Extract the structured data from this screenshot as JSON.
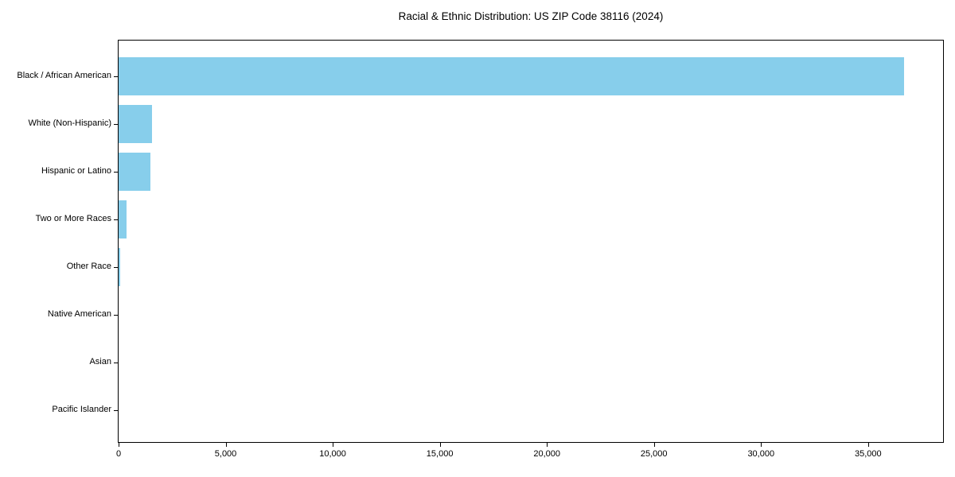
{
  "chart_data": {
    "type": "bar",
    "orientation": "horizontal",
    "title": "Racial & Ethnic Distribution: US ZIP Code 38116 (2024)",
    "categories": [
      "Black / African American",
      "White (Non-Hispanic)",
      "Hispanic or Latino",
      "Two or More Races",
      "Other Race",
      "Native American",
      "Asian",
      "Pacific Islander"
    ],
    "values": [
      36670,
      1560,
      1480,
      370,
      60,
      0,
      0,
      0
    ],
    "xlabel": "",
    "ylabel": "",
    "xlim": [
      0,
      38500
    ],
    "xticks": [
      0,
      5000,
      10000,
      15000,
      20000,
      25000,
      30000,
      35000
    ],
    "xtick_labels": [
      "0",
      "5,000",
      "10,000",
      "15,000",
      "20,000",
      "25,000",
      "30,000",
      "35,000"
    ],
    "bar_color": "#87CEEB",
    "axis_color": "#000000",
    "background_color": "#ffffff",
    "grid": false,
    "legend": false
  }
}
